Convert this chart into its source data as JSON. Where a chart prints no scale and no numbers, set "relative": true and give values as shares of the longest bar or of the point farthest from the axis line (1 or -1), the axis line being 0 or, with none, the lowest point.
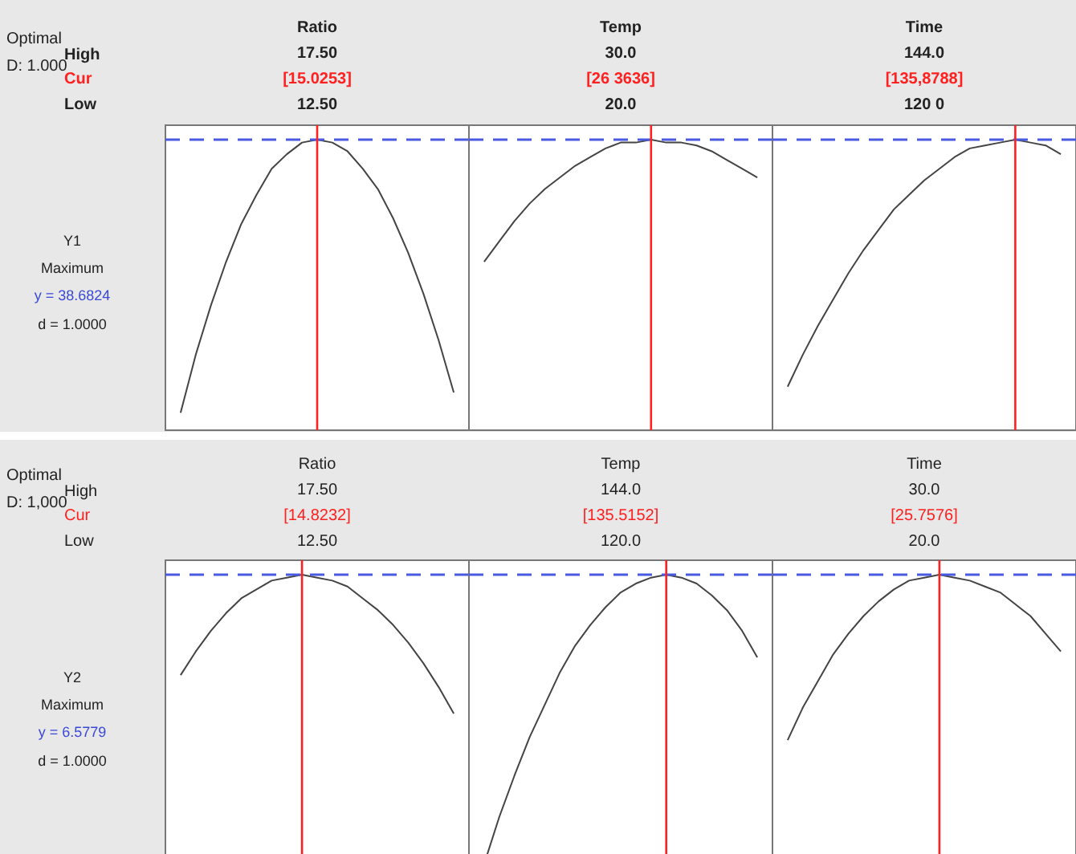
{
  "chart_data": [
    {
      "type": "line",
      "relative": true,
      "title": "Ratio",
      "categories": [
        null,
        null,
        null,
        null,
        null,
        null,
        null,
        null,
        null,
        null,
        null,
        null,
        null,
        null,
        null,
        null,
        null,
        null,
        null
      ],
      "series": [
        {
          "color": "#444444",
          "values": [
            0.06,
            0.26,
            0.43,
            0.58,
            0.71,
            0.81,
            0.9,
            0.95,
            0.99,
            1,
            0.99,
            0.96,
            0.9,
            0.83,
            0.73,
            0.61,
            0.47,
            0.31,
            0.13
          ]
        }
      ],
      "ref_lines": [
        {
          "axis": "x",
          "label": "[15.0253]",
          "color": "#ff2020"
        },
        {
          "axis": "y",
          "color": "#4a5ae0",
          "line_style": "dashed"
        }
      ],
      "annotations": [
        "17.50",
        "12.50",
        "Optimal",
        "D: 1.000",
        "High",
        "Cur",
        "Low",
        "Y1",
        "Maximum",
        "y = 38.6824",
        "d = 1.0000"
      ]
    },
    {
      "type": "line",
      "relative": true,
      "title": "Temp",
      "categories": [
        null,
        null,
        null,
        null,
        null,
        null,
        null,
        null,
        null,
        null,
        null,
        null,
        null,
        null,
        null,
        null,
        null,
        null,
        null
      ],
      "series": [
        {
          "color": "#444444",
          "values": [
            0.58,
            0.65,
            0.72,
            0.78,
            0.83,
            0.87,
            0.91,
            0.94,
            0.97,
            0.99,
            0.99,
            1,
            0.99,
            0.99,
            0.98,
            0.96,
            0.93,
            0.9,
            0.87
          ]
        }
      ],
      "ref_lines": [
        {
          "axis": "x",
          "label": "[26 3636]",
          "color": "#ff2020"
        },
        {
          "axis": "y",
          "color": "#4a5ae0",
          "line_style": "dashed"
        }
      ],
      "annotations": [
        "30.0",
        "20.0"
      ]
    },
    {
      "type": "line",
      "relative": true,
      "title": "Time",
      "categories": [
        null,
        null,
        null,
        null,
        null,
        null,
        null,
        null,
        null,
        null,
        null,
        null,
        null,
        null,
        null,
        null,
        null,
        null,
        null
      ],
      "series": [
        {
          "color": "#444444",
          "values": [
            0.15,
            0.26,
            0.36,
            0.45,
            0.54,
            0.62,
            0.69,
            0.76,
            0.81,
            0.86,
            0.9,
            0.94,
            0.97,
            0.98,
            0.99,
            1,
            0.99,
            0.98,
            0.95
          ]
        }
      ],
      "ref_lines": [
        {
          "axis": "x",
          "label": "[135,8788]",
          "color": "#ff2020"
        },
        {
          "axis": "y",
          "color": "#4a5ae0",
          "line_style": "dashed"
        }
      ],
      "annotations": [
        "144.0",
        "120 0"
      ]
    },
    {
      "type": "line",
      "relative": true,
      "title": "Ratio",
      "categories": [
        null,
        null,
        null,
        null,
        null,
        null,
        null,
        null,
        null,
        null,
        null,
        null,
        null,
        null,
        null,
        null,
        null,
        null,
        null
      ],
      "series": [
        {
          "color": "#444444",
          "values": [
            0.66,
            0.74,
            0.81,
            0.87,
            0.92,
            0.95,
            0.98,
            0.99,
            1,
            0.99,
            0.98,
            0.96,
            0.92,
            0.88,
            0.83,
            0.77,
            0.7,
            0.62,
            0.53
          ]
        }
      ],
      "ref_lines": [
        {
          "axis": "x",
          "label": "[14.8232]",
          "color": "#ff2020"
        },
        {
          "axis": "y",
          "color": "#4a5ae0",
          "line_style": "dashed"
        }
      ],
      "annotations": [
        "17.50",
        "12.50",
        "Optimal",
        "D: 1,000",
        "High",
        "Cur",
        "Low",
        "Y2",
        "Maximum",
        "y = 6.5779",
        "d = 1.0000"
      ]
    },
    {
      "type": "line",
      "relative": true,
      "title": "Temp",
      "categories": [
        null,
        null,
        null,
        null,
        null,
        null,
        null,
        null,
        null,
        null,
        null,
        null,
        null,
        null,
        null,
        null,
        null,
        null,
        null
      ],
      "series": [
        {
          "color": "#444444",
          "values": [
            0.02,
            0.18,
            0.32,
            0.45,
            0.56,
            0.67,
            0.76,
            0.83,
            0.89,
            0.94,
            0.97,
            0.99,
            1,
            0.99,
            0.97,
            0.93,
            0.88,
            0.81,
            0.72
          ]
        }
      ],
      "ref_lines": [
        {
          "axis": "x",
          "label": "[135.5152]",
          "color": "#ff2020"
        },
        {
          "axis": "y",
          "color": "#4a5ae0",
          "line_style": "dashed"
        }
      ],
      "annotations": [
        "144.0",
        "120.0"
      ]
    },
    {
      "type": "line",
      "relative": true,
      "title": "Time",
      "categories": [
        null,
        null,
        null,
        null,
        null,
        null,
        null,
        null,
        null,
        null,
        null,
        null,
        null,
        null,
        null,
        null,
        null,
        null,
        null
      ],
      "series": [
        {
          "color": "#444444",
          "values": [
            0.44,
            0.55,
            0.64,
            0.73,
            0.8,
            0.86,
            0.91,
            0.95,
            0.98,
            0.99,
            1,
            0.99,
            0.98,
            0.96,
            0.94,
            0.9,
            0.86,
            0.8,
            0.74
          ]
        }
      ],
      "ref_lines": [
        {
          "axis": "x",
          "label": "[25.7576]",
          "color": "#ff2020"
        },
        {
          "axis": "y",
          "color": "#4a5ae0",
          "line_style": "dashed"
        }
      ],
      "annotations": [
        "30.0",
        "20.0"
      ]
    }
  ]
}
